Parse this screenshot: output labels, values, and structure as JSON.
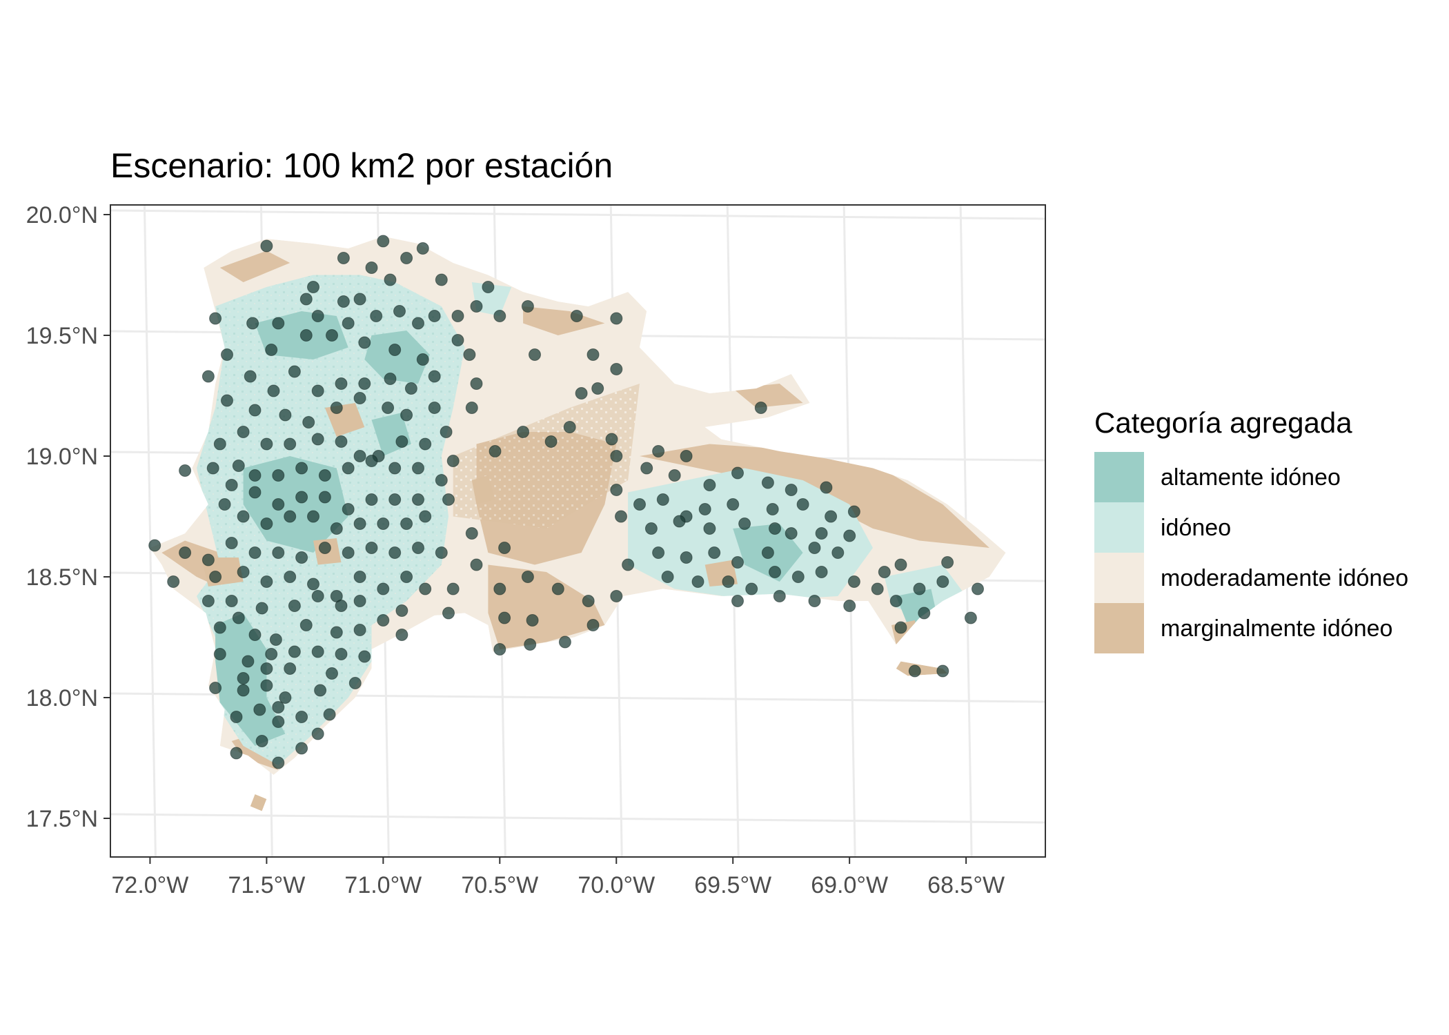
{
  "title": "Escenario: 100 km2 por estación",
  "axes": {
    "x_ticks": [
      {
        "lon": -72.0,
        "label": "72.0°W"
      },
      {
        "lon": -71.5,
        "label": "71.5°W"
      },
      {
        "lon": -71.0,
        "label": "71.0°W"
      },
      {
        "lon": -70.5,
        "label": "70.5°W"
      },
      {
        "lon": -70.0,
        "label": "70.0°W"
      },
      {
        "lon": -69.5,
        "label": "69.5°W"
      },
      {
        "lon": -69.0,
        "label": "69.0°W"
      },
      {
        "lon": -68.5,
        "label": "68.5°W"
      }
    ],
    "y_ticks": [
      {
        "lat": 20.0,
        "label": "20.0°N"
      },
      {
        "lat": 19.5,
        "label": "19.5°N"
      },
      {
        "lat": 19.0,
        "label": "19.0°N"
      },
      {
        "lat": 18.5,
        "label": "18.5°N"
      },
      {
        "lat": 18.0,
        "label": "18.0°N"
      },
      {
        "lat": 17.5,
        "label": "17.5°N"
      }
    ],
    "xlim": [
      -72.17,
      -68.16
    ],
    "ylim": [
      17.34,
      20.04
    ]
  },
  "legend": {
    "title": "Categoría agregada",
    "items": [
      {
        "label": "altamente idóneo",
        "color": "#9bcec6"
      },
      {
        "label": "idóneo",
        "color": "#cce9e4"
      },
      {
        "label": "moderadamente idóneo",
        "color": "#f3ebe0"
      },
      {
        "label": "marginalmente idóneo",
        "color": "#dbc0a0"
      }
    ]
  },
  "colors": {
    "gridline": "#ebebeb",
    "station": "#1a3a34",
    "panel_border": "#333333",
    "tick_text": "#4d4d4d"
  },
  "chart_data": {
    "type": "scatter",
    "x_label": "",
    "y_label": "",
    "stations": [
      [
        -71.5,
        19.87
      ],
      [
        -71.17,
        19.82
      ],
      [
        -71.0,
        19.89
      ],
      [
        -70.9,
        19.82
      ],
      [
        -70.83,
        19.86
      ],
      [
        -71.3,
        19.7
      ],
      [
        -71.05,
        19.78
      ],
      [
        -70.97,
        19.73
      ],
      [
        -70.75,
        19.73
      ],
      [
        -70.55,
        19.7
      ],
      [
        -70.6,
        19.62
      ],
      [
        -70.38,
        19.62
      ],
      [
        -70.17,
        19.58
      ],
      [
        -70.0,
        19.57
      ],
      [
        -71.72,
        19.57
      ],
      [
        -71.56,
        19.55
      ],
      [
        -71.45,
        19.55
      ],
      [
        -71.33,
        19.65
      ],
      [
        -71.28,
        19.58
      ],
      [
        -71.17,
        19.64
      ],
      [
        -71.1,
        19.65
      ],
      [
        -71.03,
        19.58
      ],
      [
        -70.93,
        19.6
      ],
      [
        -70.85,
        19.55
      ],
      [
        -70.78,
        19.58
      ],
      [
        -70.68,
        19.58
      ],
      [
        -70.5,
        19.58
      ],
      [
        -71.67,
        19.42
      ],
      [
        -71.48,
        19.44
      ],
      [
        -71.33,
        19.5
      ],
      [
        -71.22,
        19.5
      ],
      [
        -71.15,
        19.55
      ],
      [
        -71.08,
        19.47
      ],
      [
        -70.95,
        19.44
      ],
      [
        -70.83,
        19.4
      ],
      [
        -70.68,
        19.48
      ],
      [
        -70.63,
        19.42
      ],
      [
        -70.35,
        19.42
      ],
      [
        -70.1,
        19.42
      ],
      [
        -70.0,
        19.36
      ],
      [
        -71.75,
        19.33
      ],
      [
        -71.57,
        19.33
      ],
      [
        -71.47,
        19.27
      ],
      [
        -71.38,
        19.35
      ],
      [
        -71.28,
        19.27
      ],
      [
        -71.18,
        19.3
      ],
      [
        -71.08,
        19.3
      ],
      [
        -70.97,
        19.32
      ],
      [
        -70.88,
        19.28
      ],
      [
        -70.78,
        19.33
      ],
      [
        -70.6,
        19.3
      ],
      [
        -70.15,
        19.26
      ],
      [
        -70.08,
        19.28
      ],
      [
        -69.38,
        19.2
      ],
      [
        -71.67,
        19.23
      ],
      [
        -71.55,
        19.19
      ],
      [
        -71.42,
        19.17
      ],
      [
        -71.32,
        19.14
      ],
      [
        -71.2,
        19.2
      ],
      [
        -71.1,
        19.24
      ],
      [
        -70.98,
        19.2
      ],
      [
        -70.9,
        19.17
      ],
      [
        -70.78,
        19.2
      ],
      [
        -70.73,
        19.1
      ],
      [
        -70.62,
        19.2
      ],
      [
        -70.4,
        19.1
      ],
      [
        -70.2,
        19.12
      ],
      [
        -70.02,
        19.07
      ],
      [
        -71.7,
        19.05
      ],
      [
        -71.6,
        19.1
      ],
      [
        -71.5,
        19.05
      ],
      [
        -71.4,
        19.05
      ],
      [
        -71.28,
        19.07
      ],
      [
        -71.18,
        19.06
      ],
      [
        -71.1,
        19.0
      ],
      [
        -71.02,
        19.0
      ],
      [
        -70.92,
        19.06
      ],
      [
        -70.82,
        19.05
      ],
      [
        -70.7,
        18.98
      ],
      [
        -70.52,
        19.02
      ],
      [
        -70.28,
        19.06
      ],
      [
        -70.0,
        19.0
      ],
      [
        -69.82,
        19.02
      ],
      [
        -69.7,
        19.0
      ],
      [
        -71.85,
        18.94
      ],
      [
        -71.73,
        18.95
      ],
      [
        -71.62,
        18.96
      ],
      [
        -71.55,
        18.92
      ],
      [
        -71.45,
        18.92
      ],
      [
        -71.35,
        18.95
      ],
      [
        -71.25,
        18.92
      ],
      [
        -71.15,
        18.95
      ],
      [
        -71.05,
        18.98
      ],
      [
        -70.95,
        18.95
      ],
      [
        -70.85,
        18.95
      ],
      [
        -70.75,
        18.9
      ],
      [
        -69.87,
        18.95
      ],
      [
        -69.75,
        18.92
      ],
      [
        -69.6,
        18.88
      ],
      [
        -69.48,
        18.93
      ],
      [
        -69.35,
        18.89
      ],
      [
        -69.25,
        18.86
      ],
      [
        -69.1,
        18.87
      ],
      [
        -71.65,
        18.88
      ],
      [
        -71.55,
        18.85
      ],
      [
        -71.45,
        18.8
      ],
      [
        -71.35,
        18.83
      ],
      [
        -71.25,
        18.83
      ],
      [
        -71.15,
        18.78
      ],
      [
        -71.05,
        18.82
      ],
      [
        -70.95,
        18.82
      ],
      [
        -70.85,
        18.82
      ],
      [
        -70.72,
        18.82
      ],
      [
        -70.0,
        18.86
      ],
      [
        -69.9,
        18.8
      ],
      [
        -69.8,
        18.82
      ],
      [
        -69.7,
        18.75
      ],
      [
        -69.62,
        18.78
      ],
      [
        -69.5,
        18.8
      ],
      [
        -69.33,
        18.78
      ],
      [
        -69.2,
        18.8
      ],
      [
        -69.08,
        18.75
      ],
      [
        -68.98,
        18.77
      ],
      [
        -71.68,
        18.8
      ],
      [
        -71.6,
        18.75
      ],
      [
        -71.5,
        18.72
      ],
      [
        -71.4,
        18.75
      ],
      [
        -71.3,
        18.75
      ],
      [
        -71.2,
        18.7
      ],
      [
        -71.1,
        18.72
      ],
      [
        -71.0,
        18.72
      ],
      [
        -70.9,
        18.72
      ],
      [
        -70.82,
        18.75
      ],
      [
        -70.62,
        18.68
      ],
      [
        -69.98,
        18.75
      ],
      [
        -69.85,
        18.7
      ],
      [
        -69.73,
        18.73
      ],
      [
        -69.6,
        18.7
      ],
      [
        -69.45,
        18.72
      ],
      [
        -69.32,
        18.7
      ],
      [
        -69.25,
        18.68
      ],
      [
        -69.12,
        18.68
      ],
      [
        -69.0,
        18.67
      ],
      [
        -71.98,
        18.63
      ],
      [
        -71.85,
        18.6
      ],
      [
        -71.75,
        18.57
      ],
      [
        -71.65,
        18.64
      ],
      [
        -71.55,
        18.6
      ],
      [
        -71.45,
        18.6
      ],
      [
        -71.35,
        18.58
      ],
      [
        -71.25,
        18.62
      ],
      [
        -71.15,
        18.6
      ],
      [
        -71.05,
        18.62
      ],
      [
        -70.95,
        18.6
      ],
      [
        -70.85,
        18.62
      ],
      [
        -70.75,
        18.6
      ],
      [
        -70.6,
        18.55
      ],
      [
        -70.48,
        18.62
      ],
      [
        -69.95,
        18.55
      ],
      [
        -69.82,
        18.6
      ],
      [
        -69.7,
        18.58
      ],
      [
        -69.58,
        18.6
      ],
      [
        -69.48,
        18.56
      ],
      [
        -69.35,
        18.6
      ],
      [
        -69.15,
        18.62
      ],
      [
        -69.05,
        18.6
      ],
      [
        -68.85,
        18.52
      ],
      [
        -68.78,
        18.55
      ],
      [
        -68.58,
        18.56
      ],
      [
        -71.9,
        18.48
      ],
      [
        -71.72,
        18.5
      ],
      [
        -71.6,
        18.52
      ],
      [
        -71.5,
        18.48
      ],
      [
        -71.4,
        18.5
      ],
      [
        -71.3,
        18.47
      ],
      [
        -71.2,
        18.42
      ],
      [
        -71.1,
        18.5
      ],
      [
        -71.0,
        18.45
      ],
      [
        -70.9,
        18.5
      ],
      [
        -70.82,
        18.45
      ],
      [
        -70.7,
        18.45
      ],
      [
        -70.5,
        18.45
      ],
      [
        -70.38,
        18.5
      ],
      [
        -70.25,
        18.45
      ],
      [
        -70.12,
        18.4
      ],
      [
        -70.0,
        18.42
      ],
      [
        -69.78,
        18.5
      ],
      [
        -69.65,
        18.48
      ],
      [
        -69.52,
        18.48
      ],
      [
        -69.42,
        18.45
      ],
      [
        -69.32,
        18.52
      ],
      [
        -69.22,
        18.5
      ],
      [
        -69.12,
        18.52
      ],
      [
        -68.98,
        18.48
      ],
      [
        -68.88,
        18.45
      ],
      [
        -68.7,
        18.45
      ],
      [
        -68.6,
        18.48
      ],
      [
        -68.45,
        18.45
      ],
      [
        -71.75,
        18.4
      ],
      [
        -71.65,
        18.4
      ],
      [
        -71.52,
        18.37
      ],
      [
        -71.38,
        18.38
      ],
      [
        -71.28,
        18.42
      ],
      [
        -71.18,
        18.38
      ],
      [
        -71.1,
        18.4
      ],
      [
        -71.0,
        18.32
      ],
      [
        -70.92,
        18.36
      ],
      [
        -70.72,
        18.35
      ],
      [
        -70.48,
        18.33
      ],
      [
        -70.36,
        18.32
      ],
      [
        -70.1,
        18.3
      ],
      [
        -69.48,
        18.4
      ],
      [
        -69.3,
        18.42
      ],
      [
        -69.15,
        18.4
      ],
      [
        -69.0,
        18.38
      ],
      [
        -68.8,
        18.4
      ],
      [
        -68.68,
        18.35
      ],
      [
        -68.78,
        18.29
      ],
      [
        -68.48,
        18.33
      ],
      [
        -71.7,
        18.29
      ],
      [
        -71.62,
        18.33
      ],
      [
        -71.55,
        18.26
      ],
      [
        -71.46,
        18.24
      ],
      [
        -71.33,
        18.3
      ],
      [
        -71.2,
        18.27
      ],
      [
        -71.1,
        18.28
      ],
      [
        -70.92,
        18.26
      ],
      [
        -70.5,
        18.2
      ],
      [
        -70.37,
        18.22
      ],
      [
        -70.22,
        18.23
      ],
      [
        -68.72,
        18.11
      ],
      [
        -68.6,
        18.11
      ],
      [
        -71.7,
        18.18
      ],
      [
        -71.58,
        18.15
      ],
      [
        -71.48,
        18.18
      ],
      [
        -71.38,
        18.19
      ],
      [
        -71.28,
        18.19
      ],
      [
        -71.18,
        18.18
      ],
      [
        -71.08,
        18.17
      ],
      [
        -71.6,
        18.08
      ],
      [
        -71.5,
        18.12
      ],
      [
        -71.4,
        18.12
      ],
      [
        -71.22,
        18.1
      ],
      [
        -71.12,
        18.06
      ],
      [
        -71.72,
        18.04
      ],
      [
        -71.6,
        18.03
      ],
      [
        -71.5,
        18.05
      ],
      [
        -71.42,
        18.0
      ],
      [
        -71.27,
        18.03
      ],
      [
        -71.63,
        17.92
      ],
      [
        -71.53,
        17.95
      ],
      [
        -71.45,
        17.96
      ],
      [
        -71.35,
        17.92
      ],
      [
        -71.23,
        17.93
      ],
      [
        -71.63,
        17.77
      ],
      [
        -71.52,
        17.82
      ],
      [
        -71.45,
        17.9
      ],
      [
        -71.35,
        17.79
      ],
      [
        -71.28,
        17.85
      ],
      [
        -71.45,
        17.73
      ]
    ]
  }
}
